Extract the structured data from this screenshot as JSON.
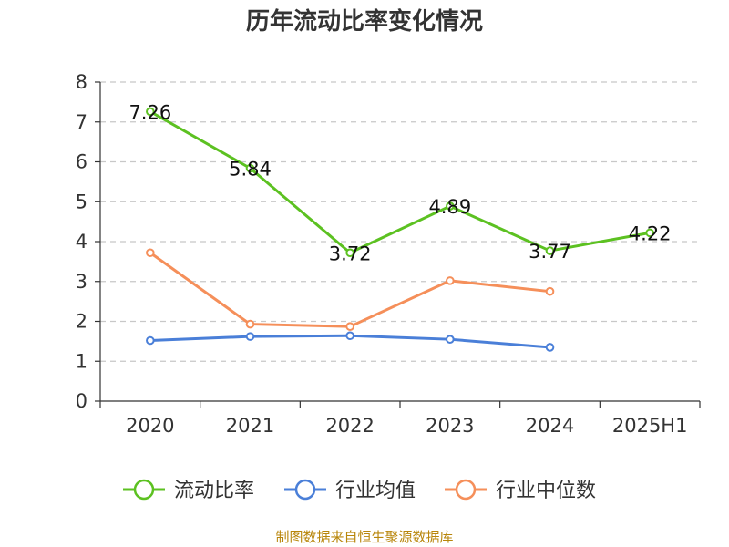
{
  "title": "历年流动比率变化情况",
  "source": "制图数据来自恒生聚源数据库",
  "chart_data": {
    "type": "line",
    "title": "历年流动比率变化情况",
    "categories": [
      "2020",
      "2021",
      "2022",
      "2023",
      "2024",
      "2025H1"
    ],
    "ylim": [
      0,
      8
    ],
    "yticks": [
      0,
      1,
      2,
      3,
      4,
      5,
      6,
      7,
      8
    ],
    "grid": true,
    "legend_position": "bottom",
    "series": [
      {
        "name": "流动比率",
        "color": "#5cc121",
        "values": [
          7.26,
          5.84,
          3.72,
          4.89,
          3.77,
          4.22
        ],
        "labels": [
          "7.26",
          "5.84",
          "3.72",
          "4.89",
          "3.77",
          "4.22"
        ]
      },
      {
        "name": "行业均值",
        "color": "#4a7fd8",
        "values": [
          1.52,
          1.62,
          1.64,
          1.55,
          1.35,
          null
        ]
      },
      {
        "name": "行业中位数",
        "color": "#f58f5a",
        "values": [
          3.72,
          1.93,
          1.87,
          3.02,
          2.75,
          null
        ]
      }
    ]
  }
}
